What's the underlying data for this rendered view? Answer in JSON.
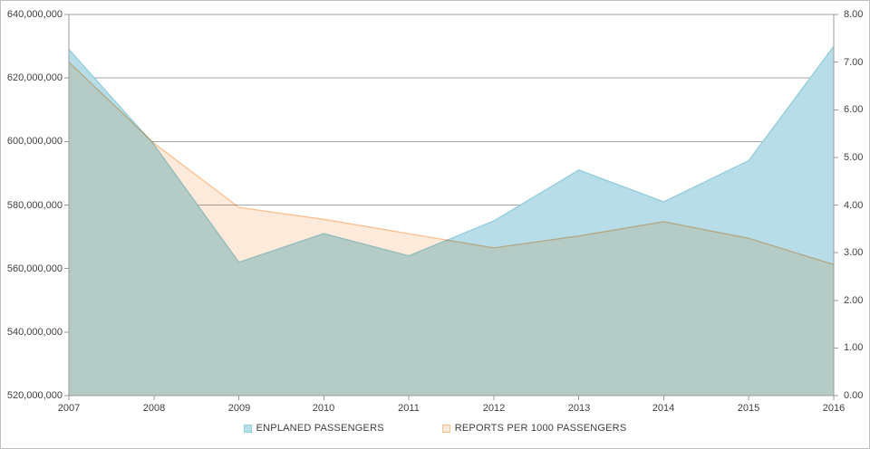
{
  "colors": {
    "background": "#ffffff",
    "frame_border": "#bfbfbf",
    "gridline": "#a6a6a6",
    "axis": "#9b9b9b",
    "text": "#3f3f3f",
    "enplaned_fill": "#b7dee8",
    "enplaned_stroke": "#92cddc",
    "reports_fill": "#fdeada",
    "reports_stroke": "#fac090"
  },
  "chart_data": {
    "type": "area",
    "title": "",
    "x": [
      2007,
      2008,
      2009,
      2010,
      2011,
      2012,
      2013,
      2014,
      2015,
      2016
    ],
    "x_tick_labels": [
      "2007",
      "2008",
      "2009",
      "2010",
      "2011",
      "2012",
      "2013",
      "2014",
      "2015",
      "2016"
    ],
    "series": [
      {
        "name": "ENPLANED PASSENGERS",
        "axis": "left",
        "values": [
          629000000,
          599000000,
          562000000,
          571000000,
          564000000,
          575000000,
          591000000,
          581000000,
          594000000,
          630000000
        ]
      },
      {
        "name": "REPORTS PER 1000 PASSENGERS",
        "axis": "right",
        "values": [
          7.0,
          5.3,
          3.95,
          3.7,
          3.4,
          3.1,
          3.35,
          3.65,
          3.3,
          2.75
        ]
      }
    ],
    "left_axis": {
      "min": 520000000,
      "max": 640000000,
      "step": 20000000,
      "tick_labels": [
        "640,000,000",
        "620,000,000",
        "600,000,000",
        "580,000,000",
        "560,000,000",
        "540,000,000",
        "520,000,000"
      ]
    },
    "right_axis": {
      "min": 0,
      "max": 8,
      "step": 1,
      "tick_labels": [
        "8.00",
        "7.00",
        "6.00",
        "5.00",
        "4.00",
        "3.00",
        "2.00",
        "1.00",
        "0.00"
      ]
    },
    "grid": true,
    "legend_position": "bottom"
  }
}
